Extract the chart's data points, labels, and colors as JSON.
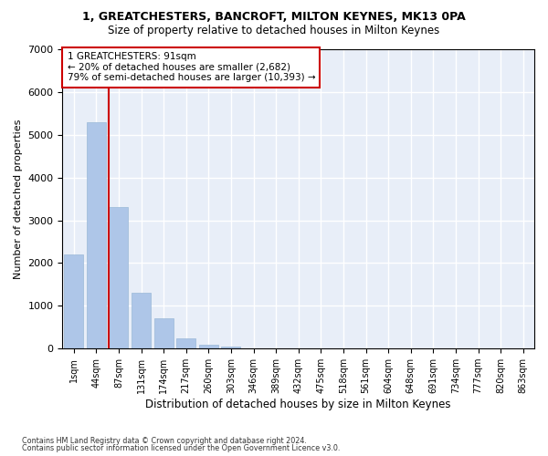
{
  "title1": "1, GREATCHESTERS, BANCROFT, MILTON KEYNES, MK13 0PA",
  "title2": "Size of property relative to detached houses in Milton Keynes",
  "xlabel": "Distribution of detached houses by size in Milton Keynes",
  "ylabel": "Number of detached properties",
  "footer1": "Contains HM Land Registry data © Crown copyright and database right 2024.",
  "footer2": "Contains public sector information licensed under the Open Government Licence v3.0.",
  "bin_labels": [
    "1sqm",
    "44sqm",
    "87sqm",
    "131sqm",
    "174sqm",
    "217sqm",
    "260sqm",
    "303sqm",
    "346sqm",
    "389sqm",
    "432sqm",
    "475sqm",
    "518sqm",
    "561sqm",
    "604sqm",
    "648sqm",
    "691sqm",
    "734sqm",
    "777sqm",
    "820sqm",
    "863sqm"
  ],
  "bar_values": [
    2200,
    5300,
    3300,
    1300,
    700,
    250,
    100,
    50,
    0,
    0,
    0,
    0,
    0,
    0,
    0,
    0,
    0,
    0,
    0,
    0,
    0
  ],
  "bar_color": "#aec6e8",
  "bar_edge_color": "#9ab8d8",
  "background_color": "#e8eef8",
  "grid_color": "#ffffff",
  "red_line_bin": 2,
  "red_line_color": "#cc0000",
  "annotation_text": "1 GREATCHESTERS: 91sqm\n← 20% of detached houses are smaller (2,682)\n79% of semi-detached houses are larger (10,393) →",
  "annotation_box_color": "#ffffff",
  "annotation_box_edge": "#cc0000",
  "ylim": [
    0,
    7000
  ],
  "yticks": [
    0,
    1000,
    2000,
    3000,
    4000,
    5000,
    6000,
    7000
  ]
}
